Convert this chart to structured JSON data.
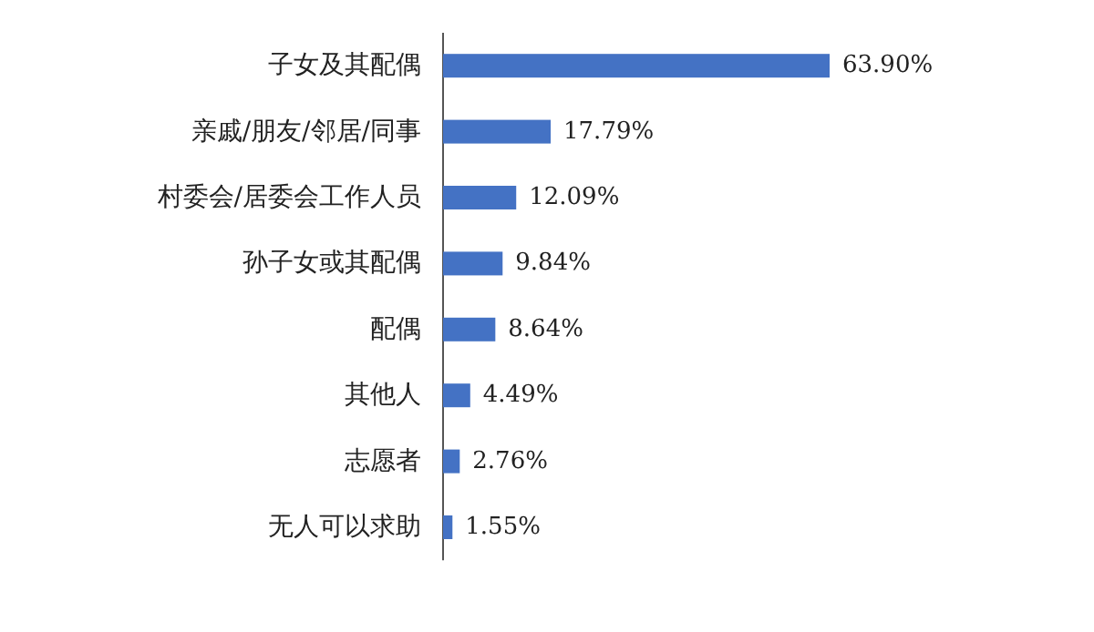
{
  "chart_data": {
    "type": "bar",
    "orientation": "horizontal",
    "color": "#4472c4",
    "categories": [
      "子女及其配偶",
      "亲戚/朋友/邻居/同事",
      "村委会/居委会工作人员",
      "孙子女或其配偶",
      "配偶",
      "其他人",
      "志愿者",
      "无人可以求助"
    ],
    "values": [
      63.9,
      17.79,
      12.09,
      9.84,
      8.64,
      4.49,
      2.76,
      1.55
    ],
    "value_labels": [
      "63.90%",
      "17.79%",
      "12.09%",
      "9.84%",
      "8.64%",
      "4.49%",
      "2.76%",
      "1.55%"
    ]
  }
}
